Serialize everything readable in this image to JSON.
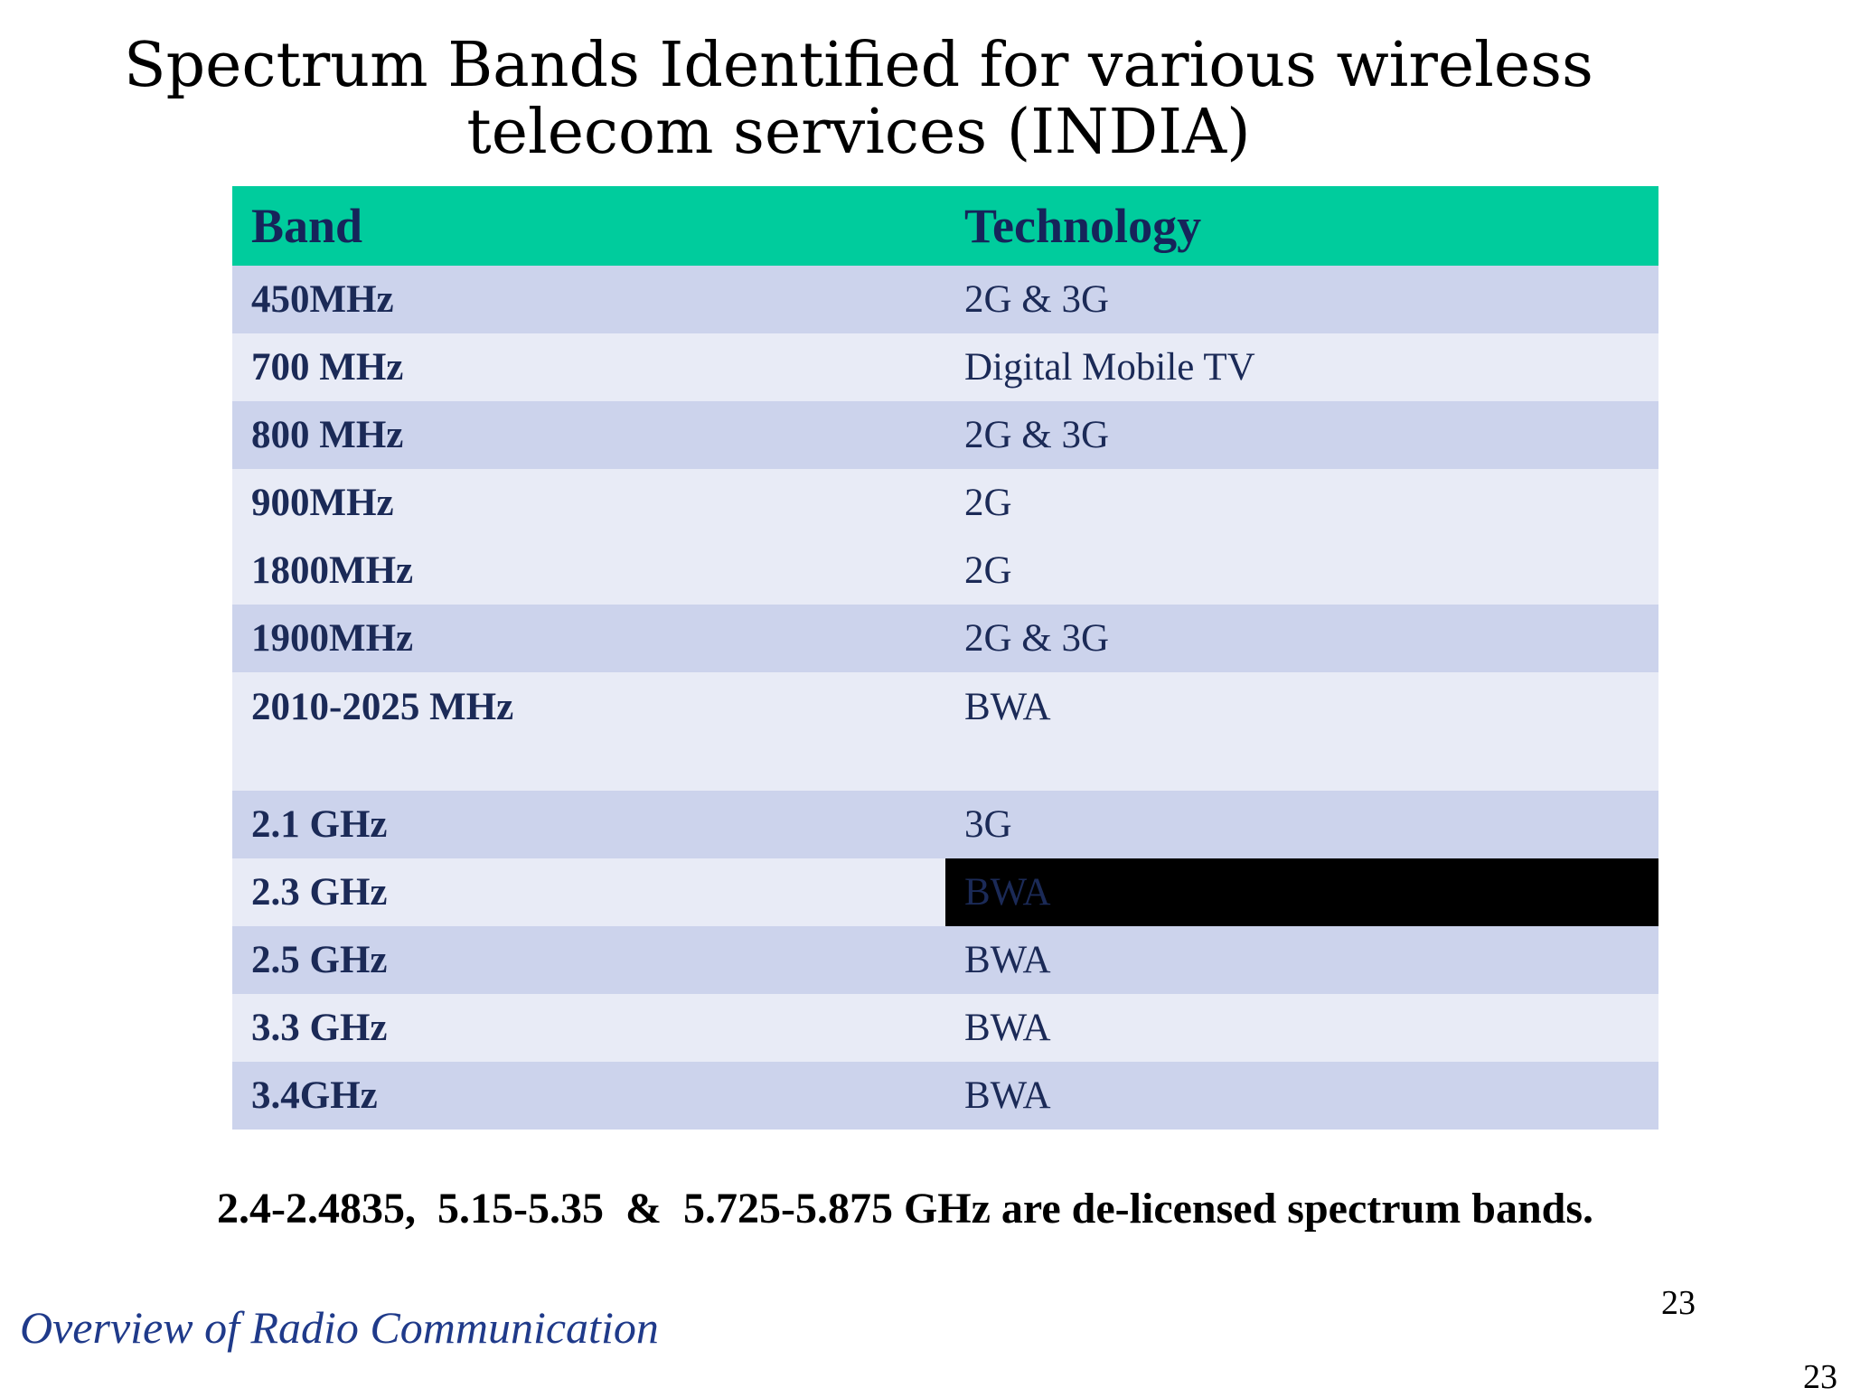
{
  "slide": {
    "title_line1": "Spectrum Bands Identified for various wireless",
    "title_line2": "telecom services (INDIA)"
  },
  "table": {
    "headers": [
      "Band",
      "Technology"
    ],
    "rows": [
      {
        "band": "450MHz",
        "technology": "2G & 3G"
      },
      {
        "band": "700 MHz",
        "technology": "Digital Mobile TV"
      },
      {
        "band": "800 MHz",
        "technology": "2G & 3G"
      },
      {
        "band": "900MHz",
        "technology": "2G"
      },
      {
        "band": "1800MHz",
        "technology": "2G"
      },
      {
        "band": "1900MHz",
        "technology": "2G & 3G"
      },
      {
        "band": "2010-2025 MHz",
        "technology": "BWA"
      },
      {
        "band": "2.1 GHz",
        "technology": "3G"
      },
      {
        "band": "2.3 GHz",
        "technology": "BWA"
      },
      {
        "band": "2.5 GHz",
        "technology": "BWA"
      },
      {
        "band": "3.3 GHz",
        "technology": "BWA"
      },
      {
        "band": "3.4GHz",
        "technology": "BWA"
      }
    ]
  },
  "note": "2.4-2.4835,  5.15-5.35  &  5.725-5.875 GHz are de-licensed spectrum bands.",
  "footer": {
    "course_title": "Overview of Radio Communication",
    "page_number": "23",
    "page_number_corner": "23"
  },
  "colors": {
    "header_bg": "#00cc9d",
    "row_dark": "#ccd3ec",
    "row_light": "#e8ebf6",
    "text_navy": "#1b2a57"
  }
}
